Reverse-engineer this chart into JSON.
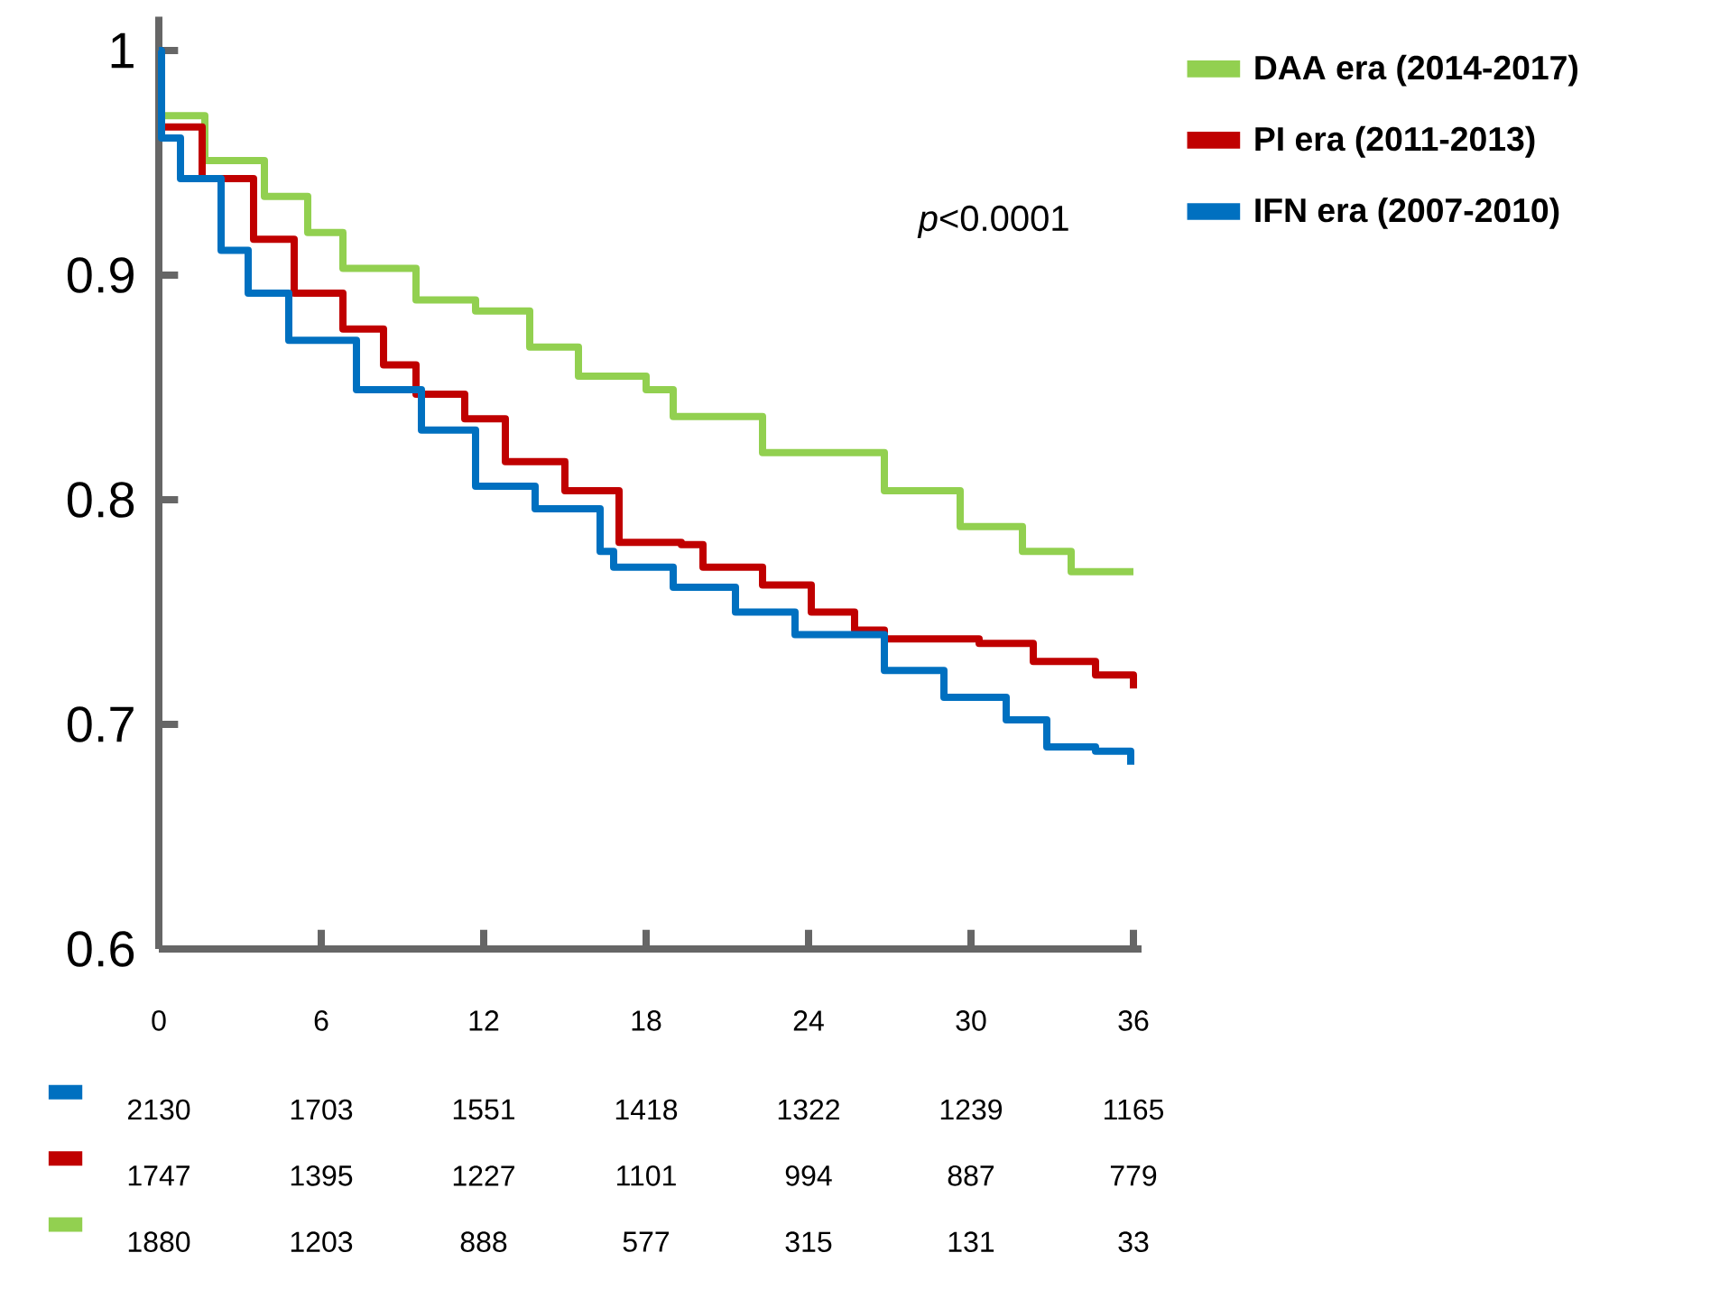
{
  "chart_data": {
    "type": "step",
    "xlim": [
      0,
      36.3
    ],
    "ylim": [
      0.6,
      1.015
    ],
    "xticks": [
      0,
      6,
      12,
      18,
      24,
      30,
      36
    ],
    "yticks": [
      0.6,
      0.7,
      0.8,
      0.9,
      1
    ],
    "grid": false,
    "legend": "top right",
    "line_style": "solid",
    "marker": "none",
    "series": [
      {
        "name": "**DAA era (2014-2017)**",
        "color": "#92d050",
        "x": [
          0,
          0.1,
          1.7,
          3.9,
          5.5,
          6.8,
          9.5,
          11.7,
          13.7,
          15.5,
          18,
          19,
          22.3,
          25,
          26.8,
          29,
          29.6,
          31.7,
          31.9,
          33.5,
          33.7,
          36
        ],
        "values": [
          1.0,
          0.971,
          0.951,
          0.935,
          0.919,
          0.903,
          0.889,
          0.884,
          0.868,
          0.855,
          0.849,
          0.837,
          0.821,
          0.821,
          0.804,
          0.804,
          0.788,
          0.788,
          0.777,
          0.777,
          0.768,
          0.768
        ]
      },
      {
        "name": "**PI era (2011-2013)**",
        "color": "#c00000",
        "x": [
          0,
          0.1,
          1.6,
          3.5,
          5,
          6.8,
          8.3,
          9.5,
          11.3,
          12.8,
          15,
          17,
          19.3,
          20.1,
          22.3,
          24.1,
          25.7,
          26.8,
          30.3,
          32.3,
          34.6,
          36
        ],
        "values": [
          1.0,
          0.966,
          0.943,
          0.916,
          0.892,
          0.876,
          0.86,
          0.847,
          0.836,
          0.817,
          0.804,
          0.781,
          0.78,
          0.77,
          0.762,
          0.75,
          0.742,
          0.738,
          0.736,
          0.728,
          0.722,
          0.716
        ]
      },
      {
        "name": "**IFN era (2007-2010)**",
        "color": "#0070c0",
        "x": [
          0,
          0.1,
          0.8,
          2.3,
          3.3,
          4.8,
          7.3,
          9.7,
          11.7,
          13.9,
          16.3,
          16.8,
          19,
          21.3,
          23.5,
          26.8,
          29,
          31.3,
          32.8,
          34.6,
          35.9
        ],
        "values": [
          1.0,
          0.961,
          0.943,
          0.911,
          0.892,
          0.871,
          0.849,
          0.831,
          0.806,
          0.796,
          0.777,
          0.77,
          0.761,
          0.75,
          0.74,
          0.724,
          0.712,
          0.702,
          0.69,
          0.688,
          0.682
        ]
      }
    ],
    "annotations": [
      "*p*<0.0001",
      "2130",
      "1703",
      "1551",
      "1418",
      "1322",
      "1239",
      "1165",
      "1747",
      "1395",
      "1227",
      "1101",
      "994",
      "887",
      "779",
      "1880",
      "1203",
      "888",
      "577",
      "315",
      "131",
      "33"
    ]
  }
}
